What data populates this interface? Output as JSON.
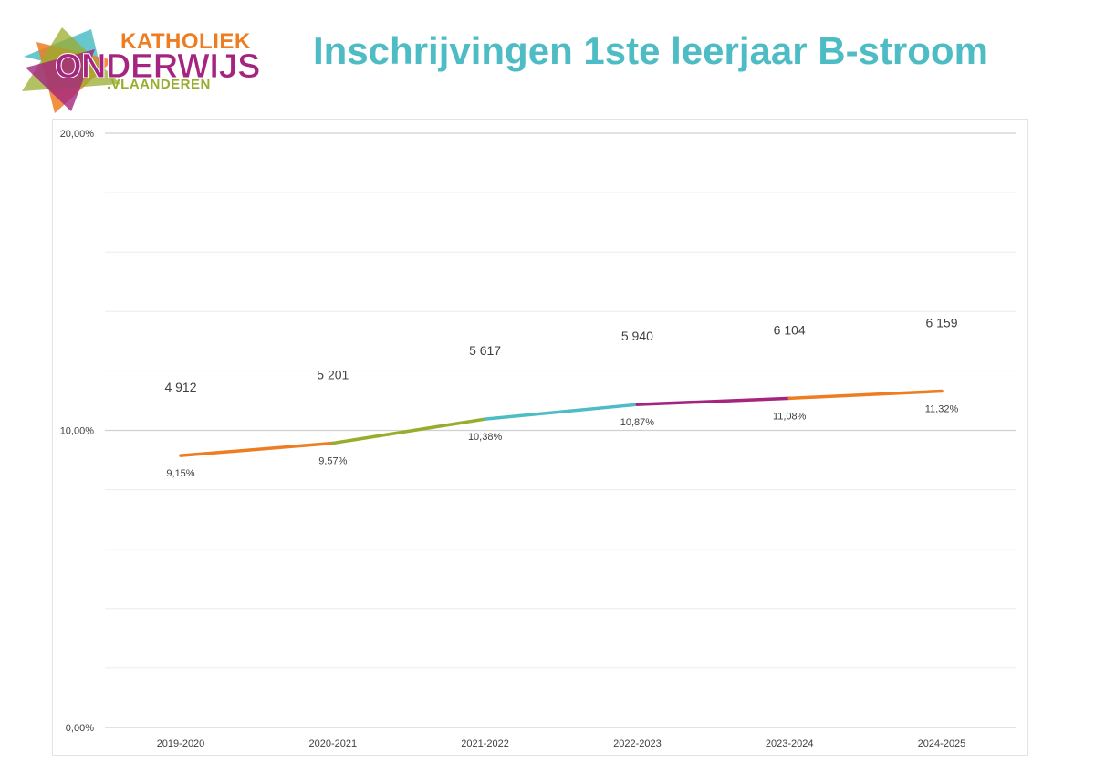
{
  "logo": {
    "top_text": "KATHOLIEK",
    "main_text": "ONDERWIJS",
    "sub_text": ".VLAANDEREN",
    "colors": {
      "orange": "#ee7d22",
      "magenta": "#a4247f",
      "green": "#9aac2e",
      "teal": "#4dbcc4"
    }
  },
  "title": "Inschrijvingen 1ste leerjaar B-stroom",
  "chart_data": {
    "type": "line",
    "title": "Inschrijvingen 1ste leerjaar B-stroom",
    "categories": [
      "2019-2020",
      "2020-2021",
      "2021-2022",
      "2022-2023",
      "2023-2024",
      "2024-2025"
    ],
    "values": [
      9.15,
      9.57,
      10.38,
      10.87,
      11.08,
      11.32
    ],
    "value_labels": [
      "9,15%",
      "9,57%",
      "10,38%",
      "10,87%",
      "11,08%",
      "11,32%"
    ],
    "counts": [
      "4 912",
      "5 201",
      "5 617",
      "5 940",
      "6 104",
      "6 159"
    ],
    "segment_colors": [
      "#ee7d22",
      "#9aac2e",
      "#4dbcc4",
      "#a4247f",
      "#ee7d22"
    ],
    "ylim": [
      0,
      20
    ],
    "yticks": [
      0,
      10,
      20
    ],
    "ytick_labels": [
      "0,00%",
      "10,00%",
      "20,00%"
    ],
    "minor_gridlines": 10,
    "grid": true,
    "xlabel": "",
    "ylabel": ""
  }
}
